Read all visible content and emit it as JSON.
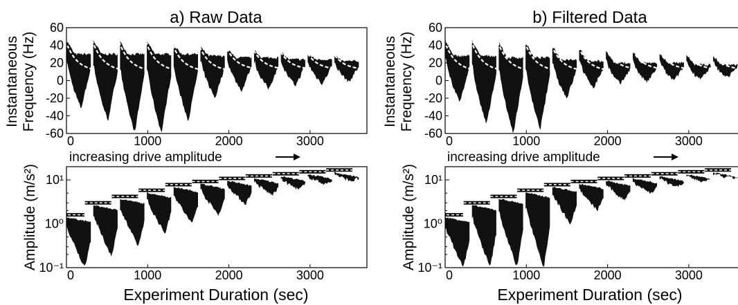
{
  "figure": {
    "annotation_label": "increasing drive amplitude",
    "x_axis_title": "Experiment Duration (sec)"
  },
  "colors": {
    "fill": "#111111",
    "fit": "#ffffff",
    "axis": "#000000"
  },
  "chart_data": [
    {
      "panel": "raw",
      "title": "a) Raw Data",
      "plots": [
        {
          "type": "area",
          "ylabel_lines": [
            "Instantaneous",
            "Frequency (Hz)"
          ],
          "xlim": [
            0,
            3700
          ],
          "ylim": [
            -60,
            60
          ],
          "xticks": [
            "0",
            "1000",
            "2000",
            "3000"
          ],
          "yticks": [
            "60",
            "40",
            "20",
            "0",
            "-20",
            "-40",
            "-60"
          ],
          "segments_start_sec": [
            0,
            330,
            660,
            990,
            1320,
            1650,
            1980,
            2310,
            2640,
            2970,
            3300
          ],
          "segment_length_sec": 300,
          "fit_start_hz": [
            52,
            52,
            50,
            50,
            46,
            44,
            42,
            40,
            38,
            36,
            34
          ],
          "fit_end_hz": [
            10,
            10,
            10,
            10,
            10,
            10,
            12,
            12,
            12,
            12,
            12
          ],
          "envelope_top_hz": [
            30,
            30,
            30,
            30,
            30,
            28,
            26,
            26,
            24,
            24,
            22
          ],
          "envelope_min_hz": [
            -32,
            -46,
            -60,
            -60,
            -46,
            -20,
            -12,
            -10,
            -6,
            -4,
            -2
          ]
        },
        {
          "type": "area",
          "ylabel_lines": [
            "Amplitude (m/s²)"
          ],
          "yscale": "log",
          "xlim": [
            0,
            3700
          ],
          "ylim": [
            0.1,
            20
          ],
          "xticks": [
            "0",
            "1000",
            "2000",
            "3000"
          ],
          "yticks": [
            "10¹",
            "10⁰",
            "10⁻¹"
          ],
          "segments_start_sec": [
            0,
            330,
            660,
            990,
            1320,
            1650,
            1980,
            2310,
            2640,
            2970,
            3300
          ],
          "segment_length_sec": 300,
          "fit_level": [
            1.6,
            3.0,
            4.2,
            5.8,
            7.8,
            9.2,
            10.8,
            12.3,
            13.8,
            15.3,
            16.8
          ],
          "envelope_min": [
            0.1,
            0.18,
            0.3,
            0.6,
            1.0,
            1.6,
            2.8,
            4.5,
            6.0,
            8.0,
            9.5
          ]
        }
      ]
    },
    {
      "panel": "filtered",
      "title": "b) Filtered Data",
      "plots": [
        {
          "type": "area",
          "ylabel_lines": [
            "Instantaneous",
            "Frequency (Hz)"
          ],
          "xlim": [
            0,
            3700
          ],
          "ylim": [
            -60,
            60
          ],
          "xticks": [
            "0",
            "1000",
            "2000",
            "3000"
          ],
          "yticks": [
            "60",
            "40",
            "20",
            "0",
            "-20",
            "-40",
            "-60"
          ],
          "segments_start_sec": [
            0,
            330,
            660,
            990,
            1320,
            1650,
            1980,
            2310,
            2640,
            2970,
            3300
          ],
          "segment_length_sec": 300,
          "fit_start_hz": [
            52,
            52,
            50,
            50,
            46,
            44,
            42,
            40,
            38,
            36,
            34
          ],
          "fit_end_hz": [
            10,
            10,
            10,
            10,
            10,
            10,
            12,
            12,
            12,
            12,
            12
          ],
          "envelope_top_hz": [
            28,
            28,
            26,
            26,
            24,
            22,
            20,
            20,
            20,
            18,
            18
          ],
          "envelope_min_hz": [
            -24,
            -50,
            -60,
            -56,
            -20,
            -8,
            -4,
            -2,
            0,
            2,
            4
          ]
        },
        {
          "type": "area",
          "ylabel_lines": [
            "Amplitude (m/s²)"
          ],
          "yscale": "log",
          "xlim": [
            0,
            3700
          ],
          "ylim": [
            0.1,
            20
          ],
          "xticks": [
            "0",
            "1000",
            "2000",
            "3000"
          ],
          "yticks": [
            "10¹",
            "10⁰",
            "10⁻¹"
          ],
          "segments_start_sec": [
            0,
            330,
            660,
            990,
            1320,
            1650,
            1980,
            2310,
            2640,
            2970,
            3300
          ],
          "segment_length_sec": 300,
          "fit_level": [
            1.6,
            3.0,
            4.2,
            5.8,
            7.8,
            9.2,
            10.8,
            12.3,
            13.8,
            15.3,
            16.8
          ],
          "envelope_min": [
            0.1,
            0.1,
            0.1,
            0.1,
            1.0,
            2.0,
            3.5,
            5.0,
            7.0,
            9.0,
            11.0
          ]
        }
      ]
    }
  ]
}
